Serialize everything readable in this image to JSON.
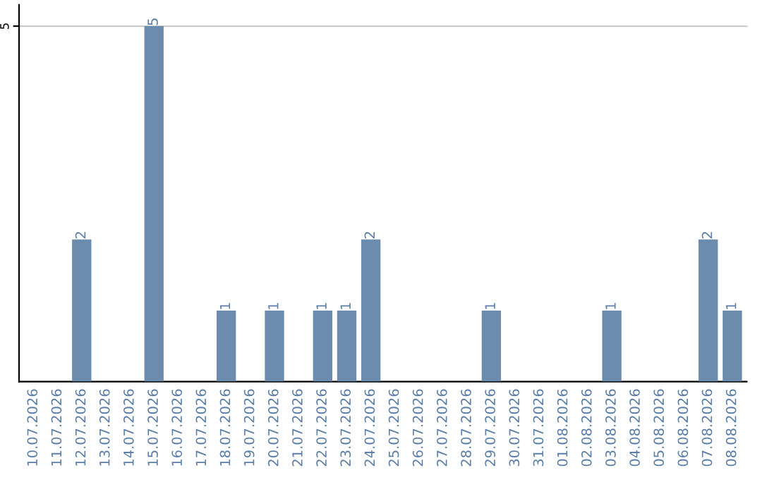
{
  "chart_data": {
    "type": "bar",
    "categories": [
      "10.07.2026",
      "11.07.2026",
      "12.07.2026",
      "13.07.2026",
      "14.07.2026",
      "15.07.2026",
      "16.07.2026",
      "17.07.2026",
      "18.07.2026",
      "19.07.2026",
      "20.07.2026",
      "21.07.2026",
      "22.07.2026",
      "23.07.2026",
      "24.07.2026",
      "25.07.2026",
      "26.07.2026",
      "27.07.2026",
      "28.07.2026",
      "29.07.2026",
      "30.07.2026",
      "31.07.2026",
      "01.08.2026",
      "02.08.2026",
      "03.08.2026",
      "04.08.2026",
      "05.08.2026",
      "06.08.2026",
      "07.08.2026",
      "08.08.2026"
    ],
    "values": [
      0,
      0,
      2,
      0,
      0,
      5,
      0,
      0,
      1,
      0,
      1,
      0,
      1,
      1,
      2,
      0,
      0,
      0,
      0,
      1,
      0,
      0,
      0,
      0,
      1,
      0,
      0,
      0,
      2,
      1
    ],
    "value_labels": [
      null,
      null,
      "2",
      null,
      null,
      "5",
      null,
      null,
      "1",
      null,
      "1",
      null,
      "1",
      "1",
      "2",
      null,
      null,
      null,
      null,
      "1",
      null,
      null,
      null,
      null,
      "1",
      null,
      null,
      null,
      "2",
      "1"
    ],
    "color": "#6b8cad",
    "ylim": [
      0,
      5.3
    ],
    "yticks": [
      5
    ],
    "grid": "y"
  }
}
